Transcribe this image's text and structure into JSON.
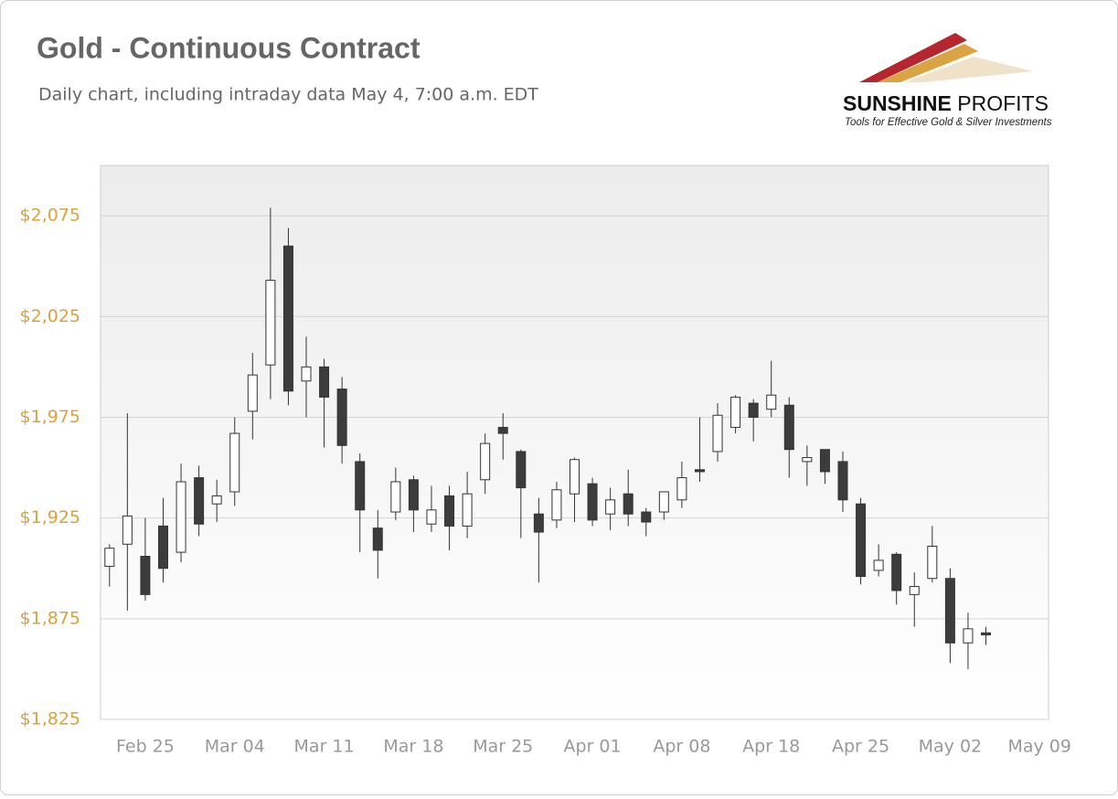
{
  "chart_data": {
    "type": "candlestick",
    "title": "Gold - Continuous Contract",
    "subtitle": "Daily chart, including intraday data May 4, 7:00 a.m. EDT",
    "logo": {
      "name_first": "SUNSHINE",
      "name_second": "PROFITS",
      "tagline": "Tools for Effective Gold & Silver Investments"
    },
    "categories": [
      null,
      null,
      "Feb 25",
      null,
      null,
      null,
      null,
      "Mar 04",
      null,
      null,
      null,
      null,
      "Mar 11",
      null,
      null,
      null,
      null,
      "Mar 18",
      null,
      null,
      null,
      null,
      "Mar 25",
      null,
      null,
      null,
      null,
      "Apr 01",
      null,
      null,
      null,
      null,
      "Apr 08",
      null,
      null,
      null,
      null,
      "Apr 18",
      null,
      null,
      null,
      null,
      "Apr 25",
      null,
      null,
      null,
      null,
      "May 02",
      null,
      null,
      null,
      null,
      "May 09"
    ],
    "open": [
      1901,
      1912,
      1906,
      1921,
      1908,
      1945,
      1932,
      1938,
      1978,
      2001,
      2060,
      1993,
      2000,
      1989,
      1953,
      1920,
      1928,
      1944,
      1922,
      1936,
      1921,
      1944,
      1970,
      1958,
      1927,
      1924,
      1937,
      1942,
      1927,
      1937,
      1928,
      1928,
      1934,
      1949,
      1958,
      1970,
      1982,
      1979,
      1981,
      1953,
      1959,
      1953,
      1932,
      1899,
      1907,
      1887,
      1895,
      1895,
      1863,
      1868,
      null,
      null,
      null
    ],
    "high": [
      1912,
      1977,
      1925,
      1935,
      1952,
      1951,
      1944,
      1975,
      2007,
      2079,
      2069,
      2015,
      2004,
      1995,
      1957,
      1929,
      1950,
      1946,
      1941,
      1941,
      1948,
      1967,
      1977,
      1959,
      1935,
      1943,
      1955,
      1945,
      1940,
      1949,
      1930,
      1938,
      1953,
      1975,
      1982,
      1986,
      1984,
      2003,
      1985,
      1961,
      1959,
      1958,
      1935,
      1912,
      1908,
      1898,
      1921,
      1900,
      1878,
      1871,
      null,
      null,
      null
    ],
    "low": [
      1891,
      1879,
      1884,
      1893,
      1903,
      1916,
      1923,
      1931,
      1964,
      1984,
      1981,
      1975,
      1960,
      1952,
      1908,
      1895,
      1924,
      1918,
      1918,
      1909,
      1915,
      1937,
      1954,
      1915,
      1893,
      1920,
      1923,
      1921,
      1919,
      1921,
      1916,
      1924,
      1930,
      1943,
      1953,
      1967,
      1963,
      1975,
      1945,
      1941,
      1942,
      1928,
      1892,
      1896,
      1882,
      1871,
      1893,
      1853,
      1850,
      1862,
      null,
      null,
      null
    ],
    "close": [
      1910,
      1926,
      1887,
      1900,
      1943,
      1922,
      1936,
      1967,
      1996,
      2043,
      1988,
      2000,
      1985,
      1961,
      1929,
      1909,
      1943,
      1929,
      1929,
      1921,
      1937,
      1962,
      1967,
      1940,
      1918,
      1939,
      1954,
      1924,
      1934,
      1927,
      1923,
      1938,
      1945,
      1948,
      1976,
      1985,
      1975,
      1986,
      1959,
      1955,
      1948,
      1934,
      1896,
      1904,
      1889,
      1891,
      1911,
      1863,
      1870,
      1867,
      null,
      null,
      null
    ],
    "up_color": "#ffffff",
    "down_color": "#3c3c3c",
    "ylim": [
      1825,
      2100
    ],
    "yticks": [
      {
        "value": 1825,
        "label": "$1,825"
      },
      {
        "value": 1875,
        "label": "$1,875"
      },
      {
        "value": 1925,
        "label": "$1,925"
      },
      {
        "value": 1975,
        "label": "$1,975"
      },
      {
        "value": 2025,
        "label": "$2,025"
      },
      {
        "value": 2075,
        "label": "$2,075"
      }
    ],
    "grid": true
  }
}
